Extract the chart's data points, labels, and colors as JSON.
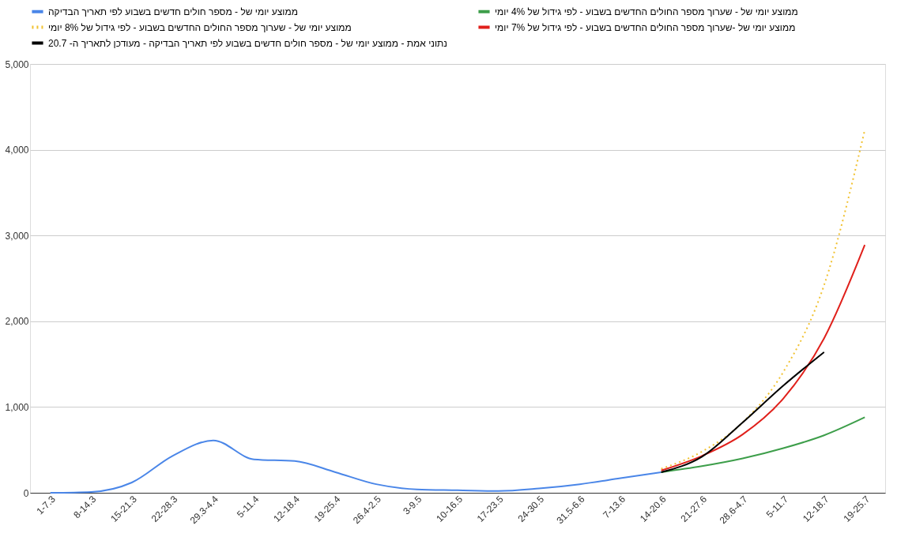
{
  "chart_data": {
    "type": "line",
    "categories": [
      "1-7.3",
      "8-14.3",
      "15-21.3",
      "22-28.3",
      "29.3-4.4",
      "5-11.4",
      "12-18.4",
      "19-25.4",
      "26.4-2.5",
      "3-9.5",
      "10-16.5",
      "17-23.5",
      "24-30.5",
      "31.5-6.6",
      "7-13.6",
      "14-20.6",
      "21-27.6",
      "28.6-4.7",
      "5-11.7",
      "12-18.7",
      "19-25.7"
    ],
    "series": [
      {
        "name": "ממוצע יומי של - מספר חולים חדשים בשבוע לפי תאריך הבדיקה",
        "color": "#4a86e8",
        "line_style": "solid",
        "values": [
          0,
          10,
          120,
          430,
          610,
          390,
          370,
          240,
          100,
          40,
          30,
          20,
          50,
          100,
          170,
          240,
          null,
          null,
          null,
          null,
          null
        ]
      },
      {
        "name": "ממוצע יומי של - שערוך מספר החולים החדשים בשבוע - לפי גידול של 4% יומי",
        "color": "#3d9e4a",
        "line_style": "solid",
        "values": [
          null,
          null,
          null,
          null,
          null,
          null,
          null,
          null,
          null,
          null,
          null,
          null,
          null,
          null,
          null,
          240,
          310,
          400,
          520,
          670,
          880
        ]
      },
      {
        "name": "ממוצע יומי של - שערוך מספר החולים החדשים בשבוע - לפי גידול של 8% יומי",
        "color": "#f1c232",
        "line_style": "dotted",
        "values": [
          null,
          null,
          null,
          null,
          null,
          null,
          null,
          null,
          null,
          null,
          null,
          null,
          null,
          null,
          null,
          280,
          480,
          820,
          1410,
          2420,
          4230
        ]
      },
      {
        "name": "ממוצע יומי של -שערוך מספר החולים החדשים בשבוע - לפי גידול של 7% יומי",
        "color": "#e0201b",
        "line_style": "solid",
        "values": [
          null,
          null,
          null,
          null,
          null,
          null,
          null,
          null,
          null,
          null,
          null,
          null,
          null,
          null,
          null,
          260,
          430,
          680,
          1100,
          1800,
          2890
        ]
      },
      {
        "name": "נתוני אמת - ממוצע יומי של - מספר חולים חדשים בשבוע לפי תאריך הבדיקה - מעודכן לתאריך ה- 20.7",
        "color": "#000000",
        "line_style": "solid",
        "values": [
          null,
          null,
          null,
          null,
          null,
          null,
          null,
          null,
          null,
          null,
          null,
          null,
          null,
          null,
          null,
          240,
          420,
          820,
          1250,
          1640,
          null
        ]
      }
    ],
    "ylim": [
      0,
      5000
    ],
    "yticks": [
      0,
      {
        "value": 1000,
        "label": "1,000"
      },
      {
        "value": 2000,
        "label": "2,000"
      },
      {
        "value": 3000,
        "label": "3,000"
      },
      {
        "value": 4000,
        "label": "4,000"
      },
      {
        "value": 5000,
        "label": "5,000"
      }
    ],
    "grid": "y",
    "legend": "top"
  }
}
